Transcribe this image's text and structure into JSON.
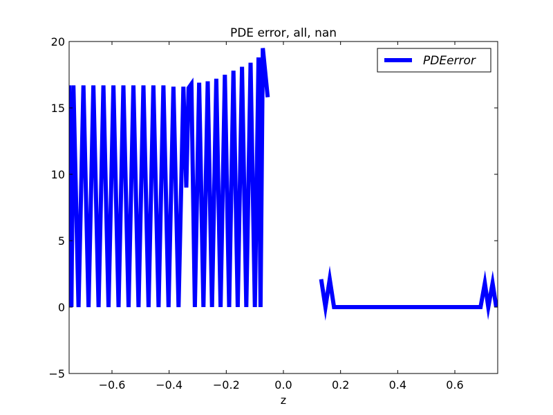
{
  "chart_data": {
    "type": "line",
    "title": "PDE error, all, nan",
    "xlabel": "z",
    "ylabel": "",
    "xlim": [
      -0.75,
      0.75
    ],
    "ylim": [
      -5,
      20
    ],
    "xticks": [
      -0.6,
      -0.4,
      -0.2,
      0.0,
      0.2,
      0.4,
      0.6
    ],
    "xtick_labels": [
      "−0.6",
      "−0.4",
      "−0.2",
      "0.0",
      "0.2",
      "0.4",
      "0.6"
    ],
    "yticks": [
      -5,
      0,
      5,
      10,
      15,
      20
    ],
    "ytick_labels": [
      "−5",
      "0",
      "5",
      "10",
      "15",
      "20"
    ],
    "grid": false,
    "legend": {
      "position": "upper right",
      "entries": [
        "PDEerror"
      ]
    },
    "series": [
      {
        "name": "PDEerror",
        "color": "#0000ff",
        "segments": [
          [
            [
              -0.75,
              16.7
            ],
            [
              -0.742,
              0.0
            ],
            [
              -0.735,
              16.7
            ],
            [
              -0.717,
              0.0
            ],
            [
              -0.7,
              16.7
            ],
            [
              -0.682,
              0.0
            ],
            [
              -0.665,
              16.7
            ],
            [
              -0.647,
              0.0
            ],
            [
              -0.63,
              16.7
            ],
            [
              -0.612,
              0.0
            ],
            [
              -0.595,
              16.7
            ],
            [
              -0.577,
              0.0
            ],
            [
              -0.56,
              16.7
            ],
            [
              -0.542,
              0.0
            ],
            [
              -0.525,
              16.7
            ],
            [
              -0.507,
              0.0
            ],
            [
              -0.49,
              16.7
            ],
            [
              -0.472,
              0.0
            ],
            [
              -0.455,
              16.7
            ],
            [
              -0.437,
              0.0
            ],
            [
              -0.42,
              16.7
            ],
            [
              -0.402,
              0.0
            ],
            [
              -0.385,
              16.6
            ],
            [
              -0.367,
              0.0
            ],
            [
              -0.35,
              16.6
            ],
            [
              -0.34,
              9.0
            ],
            [
              -0.332,
              16.5
            ],
            [
              -0.322,
              16.8
            ],
            [
              -0.31,
              0.0
            ],
            [
              -0.295,
              16.9
            ],
            [
              -0.28,
              0.0
            ],
            [
              -0.265,
              17.0
            ],
            [
              -0.25,
              0.0
            ],
            [
              -0.235,
              17.2
            ],
            [
              -0.22,
              0.0
            ],
            [
              -0.205,
              17.5
            ],
            [
              -0.19,
              0.0
            ],
            [
              -0.175,
              17.8
            ],
            [
              -0.16,
              0.0
            ],
            [
              -0.145,
              18.1
            ],
            [
              -0.13,
              0.0
            ],
            [
              -0.115,
              18.4
            ],
            [
              -0.1,
              0.0
            ],
            [
              -0.087,
              18.8
            ],
            [
              -0.08,
              0.0
            ],
            [
              -0.072,
              19.5
            ],
            [
              -0.055,
              15.8
            ]
          ],
          [
            [
              0.132,
              2.1
            ],
            [
              0.147,
              0.0
            ],
            [
              0.162,
              2.1
            ],
            [
              0.177,
              0.0
            ],
            [
              0.2,
              0.0
            ],
            [
              0.69,
              0.0
            ],
            [
              0.705,
              1.8
            ],
            [
              0.717,
              0.0
            ],
            [
              0.732,
              1.8
            ],
            [
              0.745,
              0.0
            ]
          ]
        ]
      }
    ]
  }
}
